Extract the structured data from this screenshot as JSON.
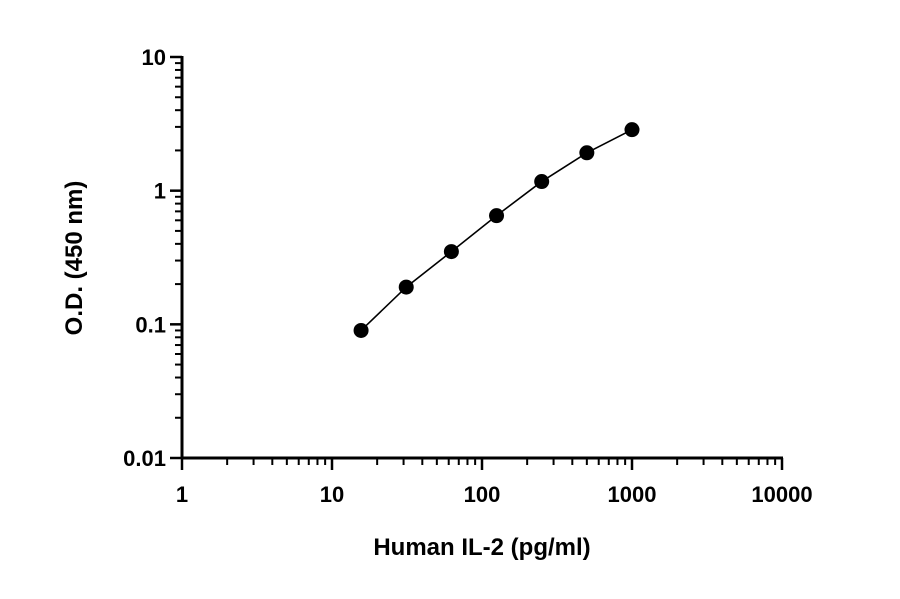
{
  "chart_data": {
    "type": "scatter",
    "xlabel": "Human IL-2 (pg/ml)",
    "ylabel": "O.D. (450 nm)",
    "x_scale": "log",
    "y_scale": "log",
    "xlim": [
      1,
      10000
    ],
    "ylim": [
      0.01,
      10
    ],
    "x_ticks": [
      1,
      10,
      100,
      1000,
      10000
    ],
    "x_tick_labels": [
      "1",
      "10",
      "100",
      "1000",
      "10000"
    ],
    "y_ticks": [
      0.01,
      0.1,
      1,
      10
    ],
    "y_tick_labels": [
      "0.01",
      "0.1",
      "1",
      "10"
    ],
    "grid": false,
    "fit_line": true,
    "marker_color": "#000000",
    "series": [
      {
        "x": [
          15.625,
          31.25,
          62.5,
          125,
          250,
          500,
          1000
        ],
        "y": [
          0.09,
          0.19,
          0.35,
          0.65,
          1.17,
          1.92,
          2.86
        ]
      }
    ]
  }
}
